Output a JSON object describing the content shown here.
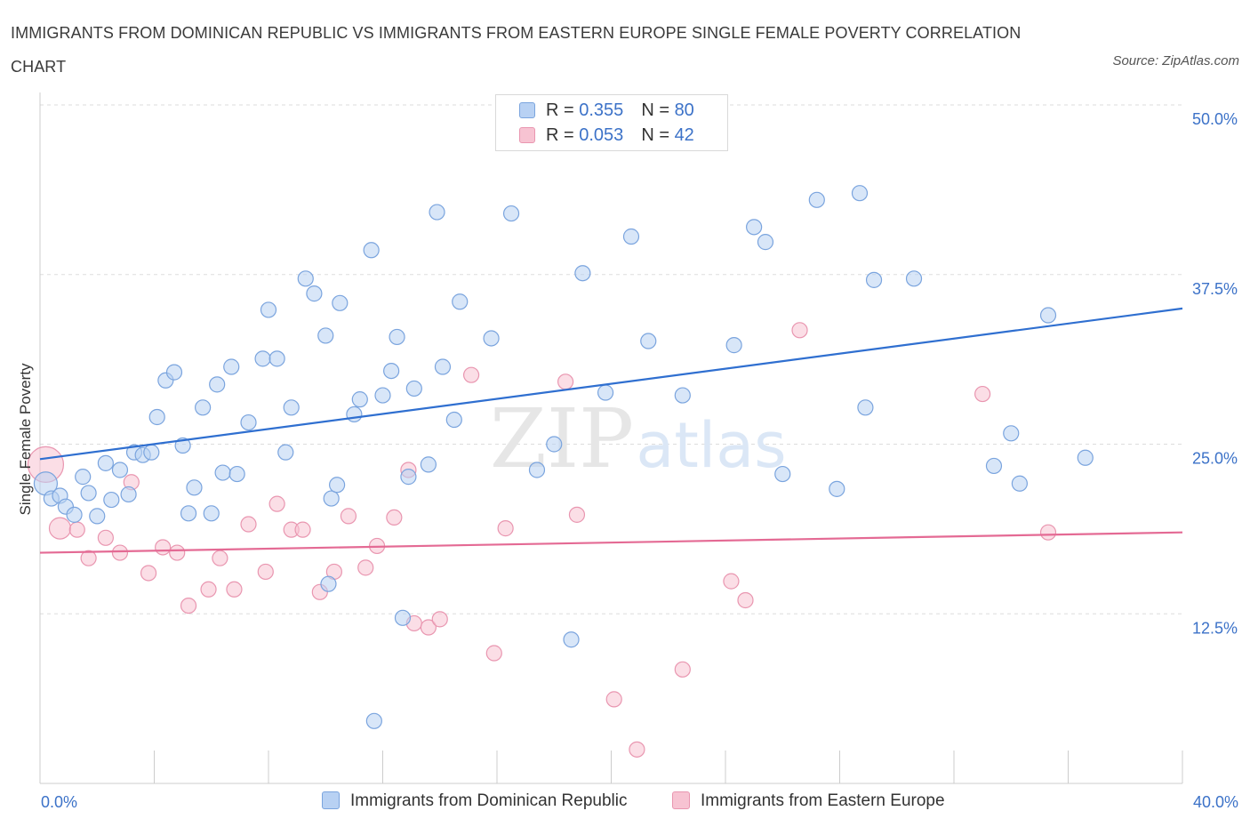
{
  "title": "IMMIGRANTS FROM DOMINICAN REPUBLIC VS IMMIGRANTS FROM EASTERN EUROPE SINGLE FEMALE POVERTY CORRELATION CHART",
  "source": "Source: ZipAtlas.com",
  "watermark": {
    "zip": "ZIP",
    "atlas": "atlas"
  },
  "colors": {
    "blue_fill": "#b8d1f3",
    "blue_stroke": "#7aa4de",
    "blue_line": "#2f6fd0",
    "pink_fill": "#f7c3d2",
    "pink_stroke": "#e996b0",
    "pink_line": "#e46a94",
    "axis_label": "#3c72c8",
    "grid": "#dddddd"
  },
  "legend": {
    "rows": [
      {
        "r_label": "R = ",
        "r_value": "0.355",
        "n_label": "N = ",
        "n_value": "80"
      },
      {
        "r_label": "R = ",
        "r_value": "0.053",
        "n_label": "N = ",
        "n_value": "42"
      }
    ]
  },
  "chart_data": {
    "type": "scatter",
    "xlabel": "",
    "ylabel": "Single Female Poverty",
    "xlim": [
      0,
      40
    ],
    "ylim": [
      0,
      50
    ],
    "x_tick_labels": [
      {
        "value": 0,
        "label": "0.0%"
      },
      {
        "value": 40,
        "label": "40.0%"
      }
    ],
    "y_tick_labels": [
      {
        "value": 12.5,
        "label": "12.5%"
      },
      {
        "value": 25,
        "label": "25.0%"
      },
      {
        "value": 37.5,
        "label": "37.5%"
      },
      {
        "value": 50,
        "label": "50.0%"
      }
    ],
    "grid": true,
    "legend_position": "bottom",
    "series": [
      {
        "name": "Immigrants from Dominican Republic",
        "color": "#b8d1f3",
        "trend": [
          [
            0,
            23.9
          ],
          [
            40,
            35.0
          ]
        ],
        "points": [
          [
            0.2,
            22.1
          ],
          [
            0.4,
            21.0
          ],
          [
            0.7,
            21.2
          ],
          [
            0.9,
            20.4
          ],
          [
            1.2,
            19.8
          ],
          [
            1.5,
            22.6
          ],
          [
            1.7,
            21.4
          ],
          [
            2.0,
            19.7
          ],
          [
            2.3,
            23.6
          ],
          [
            2.5,
            20.9
          ],
          [
            2.8,
            23.1
          ],
          [
            3.1,
            21.3
          ],
          [
            3.3,
            24.4
          ],
          [
            3.6,
            24.2
          ],
          [
            3.9,
            24.4
          ],
          [
            4.1,
            27.0
          ],
          [
            4.4,
            29.7
          ],
          [
            4.7,
            30.3
          ],
          [
            5.0,
            24.9
          ],
          [
            5.2,
            19.9
          ],
          [
            5.4,
            21.8
          ],
          [
            5.7,
            27.7
          ],
          [
            6.0,
            19.9
          ],
          [
            6.2,
            29.4
          ],
          [
            6.4,
            22.9
          ],
          [
            6.7,
            30.7
          ],
          [
            6.9,
            22.8
          ],
          [
            7.3,
            26.6
          ],
          [
            7.8,
            31.3
          ],
          [
            8.0,
            34.9
          ],
          [
            8.3,
            31.3
          ],
          [
            8.6,
            24.4
          ],
          [
            8.8,
            27.7
          ],
          [
            9.3,
            37.2
          ],
          [
            9.6,
            36.1
          ],
          [
            10.0,
            33.0
          ],
          [
            10.2,
            21.0
          ],
          [
            10.4,
            22.0
          ],
          [
            10.5,
            35.4
          ],
          [
            11.0,
            27.2
          ],
          [
            11.2,
            28.3
          ],
          [
            11.6,
            39.3
          ],
          [
            12.0,
            28.6
          ],
          [
            12.3,
            30.4
          ],
          [
            12.5,
            32.9
          ],
          [
            12.7,
            12.2
          ],
          [
            12.9,
            22.6
          ],
          [
            13.1,
            29.1
          ],
          [
            13.6,
            23.5
          ],
          [
            13.9,
            42.1
          ],
          [
            14.1,
            30.7
          ],
          [
            14.5,
            26.8
          ],
          [
            14.7,
            35.5
          ],
          [
            15.8,
            32.8
          ],
          [
            16.5,
            42.0
          ],
          [
            17.4,
            23.1
          ],
          [
            18.0,
            25.0
          ],
          [
            18.6,
            10.6
          ],
          [
            19.0,
            37.6
          ],
          [
            19.8,
            28.8
          ],
          [
            20.7,
            40.3
          ],
          [
            21.3,
            32.6
          ],
          [
            22.5,
            28.6
          ],
          [
            24.3,
            32.3
          ],
          [
            25.0,
            41.0
          ],
          [
            25.4,
            39.9
          ],
          [
            26.0,
            22.8
          ],
          [
            27.2,
            43.0
          ],
          [
            27.9,
            21.7
          ],
          [
            28.7,
            43.5
          ],
          [
            28.9,
            27.7
          ],
          [
            29.2,
            37.1
          ],
          [
            30.6,
            37.2
          ],
          [
            10.1,
            14.7
          ],
          [
            11.7,
            4.6
          ],
          [
            33.4,
            23.4
          ],
          [
            34.0,
            25.8
          ],
          [
            34.3,
            22.1
          ],
          [
            35.3,
            34.5
          ],
          [
            36.6,
            24.0
          ]
        ]
      },
      {
        "name": "Immigrants from Eastern Europe",
        "color": "#f7c3d2",
        "trend": [
          [
            0,
            17.0
          ],
          [
            40,
            18.5
          ]
        ],
        "points": [
          [
            0.2,
            23.5
          ],
          [
            0.7,
            18.8
          ],
          [
            1.3,
            18.7
          ],
          [
            1.7,
            16.6
          ],
          [
            2.3,
            18.1
          ],
          [
            2.8,
            17.0
          ],
          [
            3.2,
            22.2
          ],
          [
            3.8,
            15.5
          ],
          [
            4.3,
            17.4
          ],
          [
            4.8,
            17.0
          ],
          [
            5.2,
            13.1
          ],
          [
            5.9,
            14.3
          ],
          [
            6.3,
            16.6
          ],
          [
            6.8,
            14.3
          ],
          [
            7.3,
            19.1
          ],
          [
            7.9,
            15.6
          ],
          [
            8.3,
            20.6
          ],
          [
            8.8,
            18.7
          ],
          [
            9.2,
            18.7
          ],
          [
            9.8,
            14.1
          ],
          [
            10.3,
            15.6
          ],
          [
            10.8,
            19.7
          ],
          [
            11.4,
            15.9
          ],
          [
            11.8,
            17.5
          ],
          [
            12.4,
            19.6
          ],
          [
            12.9,
            23.1
          ],
          [
            13.1,
            11.8
          ],
          [
            13.6,
            11.5
          ],
          [
            14.0,
            12.1
          ],
          [
            15.1,
            30.1
          ],
          [
            15.9,
            9.6
          ],
          [
            16.3,
            18.8
          ],
          [
            18.4,
            29.6
          ],
          [
            18.8,
            19.8
          ],
          [
            20.1,
            6.2
          ],
          [
            20.9,
            2.5
          ],
          [
            22.5,
            8.4
          ],
          [
            24.2,
            14.9
          ],
          [
            24.7,
            13.5
          ],
          [
            26.6,
            33.4
          ],
          [
            33.0,
            28.7
          ],
          [
            35.3,
            18.5
          ]
        ]
      }
    ]
  }
}
